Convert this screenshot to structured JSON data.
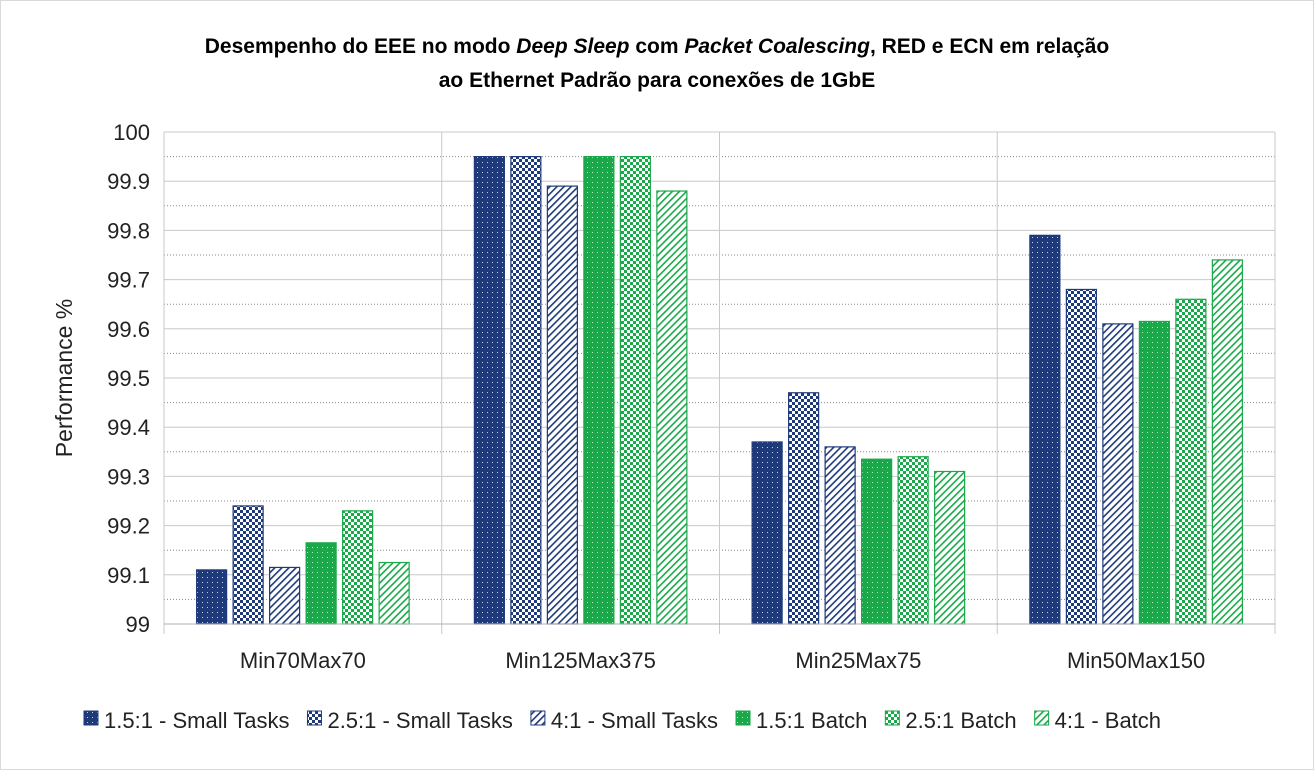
{
  "chart_data": {
    "type": "bar",
    "title": {
      "segments": [
        {
          "text": "Desempenho do EEE no modo ",
          "italic": false
        },
        {
          "text": "Deep Sleep",
          "italic": true
        },
        {
          "text": " com ",
          "italic": false
        },
        {
          "text": "Packet Coalescing",
          "italic": true
        },
        {
          "text": ", RED e ECN em relação",
          "italic": false
        }
      ],
      "line2": "ao Ethernet Padrão para conexões de 1GbE"
    },
    "xlabel": "",
    "ylabel": "Performance %",
    "ylim": [
      99,
      100
    ],
    "yticks": [
      "99",
      "99.1",
      "99.2",
      "99.3",
      "99.4",
      "99.5",
      "99.6",
      "99.7",
      "99.8",
      "99.9",
      "100"
    ],
    "grid": true,
    "legend_position": "bottom",
    "categories": [
      "Min70Max70",
      "Min125Max375",
      "Min25Max75",
      "Min50Max150"
    ],
    "series": [
      {
        "name": "1.5:1 - Small Tasks",
        "color": "#1f3a7a",
        "pattern": "dots-dark",
        "values": [
          99.11,
          99.95,
          99.37,
          99.79
        ]
      },
      {
        "name": "2.5:1 - Small Tasks",
        "color": "#1f3a7a",
        "pattern": "checker-dark",
        "values": [
          99.24,
          99.95,
          99.47,
          99.68
        ]
      },
      {
        "name": "4:1 - Small Tasks",
        "color": "#1f3a7a",
        "pattern": "diag-dark",
        "values": [
          99.115,
          99.89,
          99.36,
          99.61
        ]
      },
      {
        "name": "1.5:1 Batch",
        "color": "#1aa84a",
        "pattern": "dots-green",
        "values": [
          99.165,
          99.95,
          99.335,
          99.615
        ]
      },
      {
        "name": "2.5:1 Batch",
        "color": "#1aa84a",
        "pattern": "checker-green",
        "values": [
          99.23,
          99.95,
          99.34,
          99.66
        ]
      },
      {
        "name": "4:1 - Batch",
        "color": "#1aa84a",
        "pattern": "diag-green",
        "values": [
          99.125,
          99.88,
          99.31,
          99.74
        ]
      }
    ]
  }
}
